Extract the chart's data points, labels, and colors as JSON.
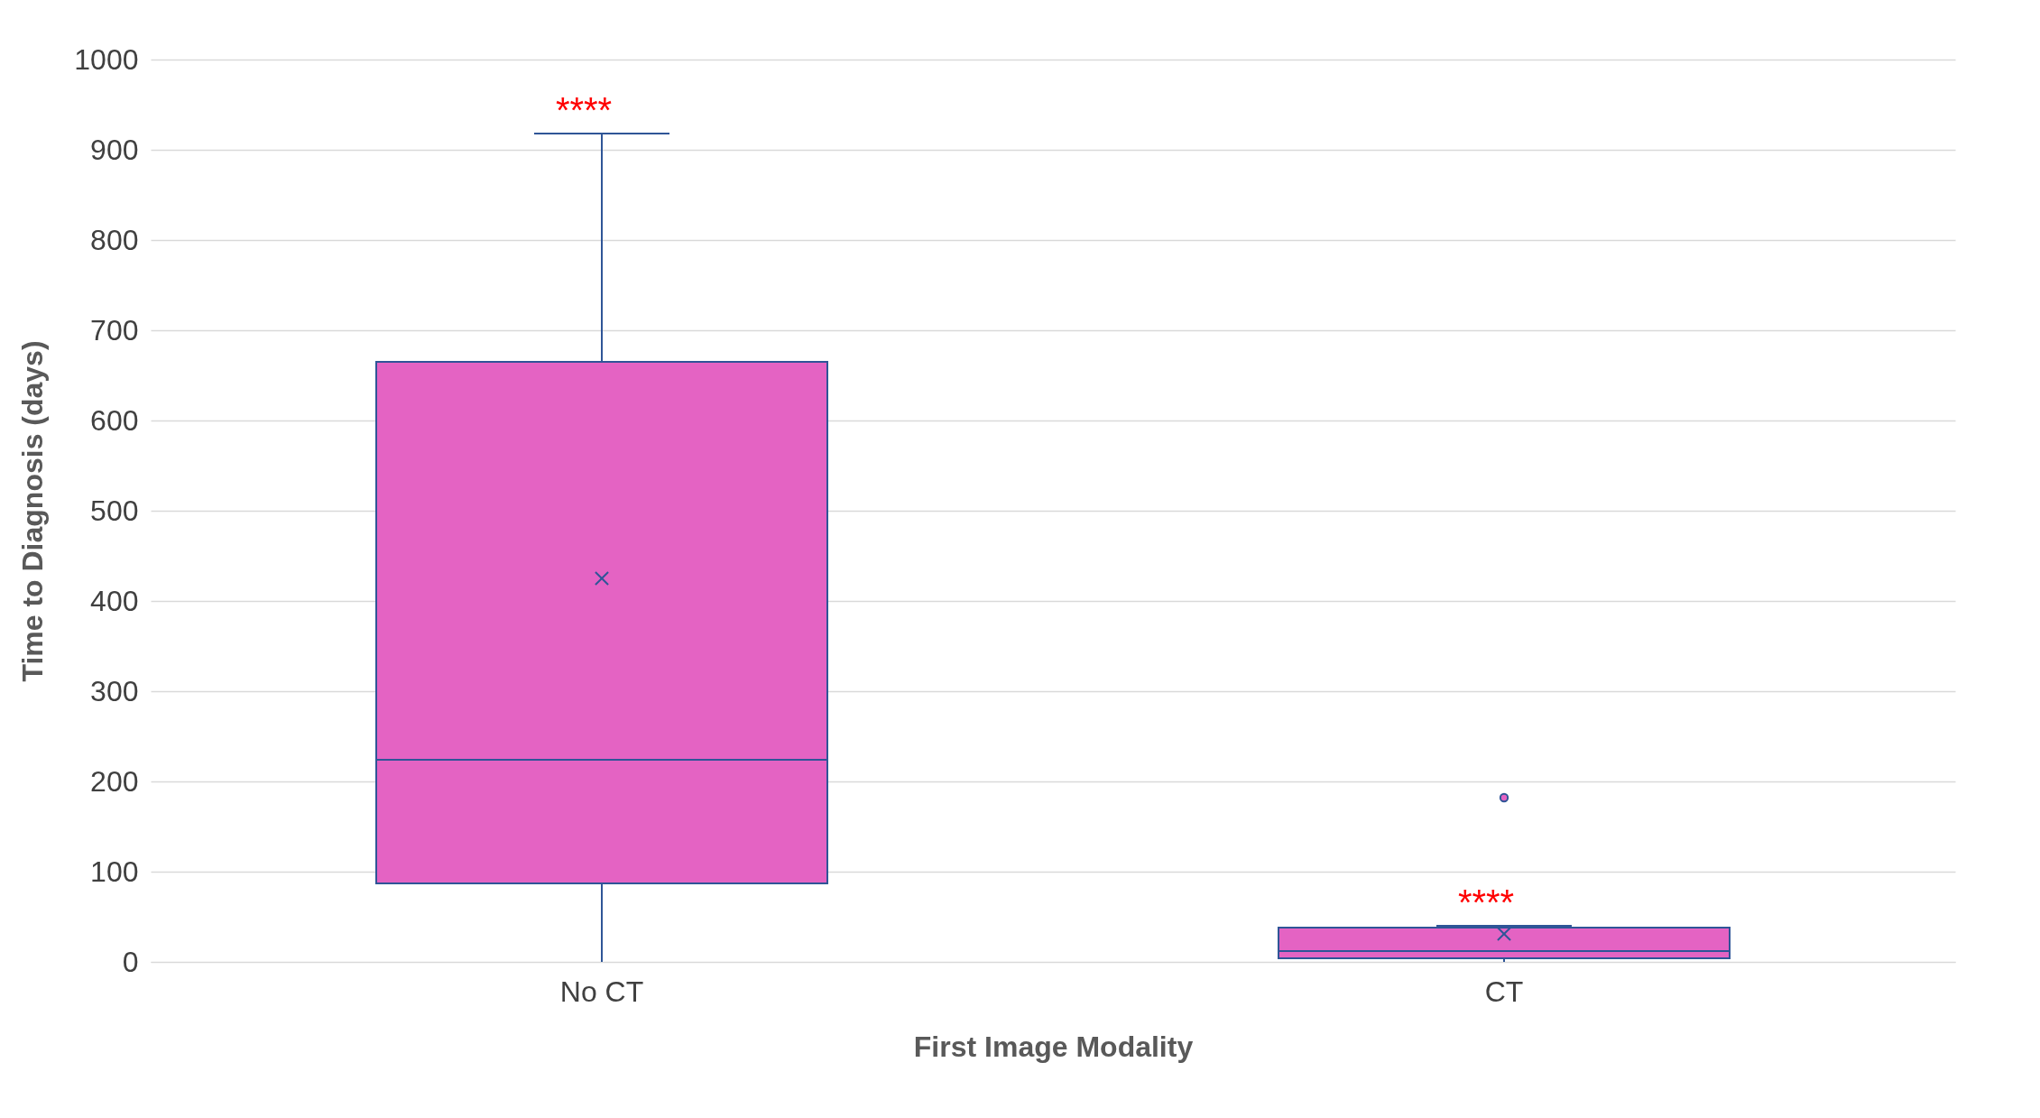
{
  "chart_data": {
    "type": "box",
    "xlabel": "First Image Modality",
    "ylabel": "Time to Diagnosis (days)",
    "categories": [
      "No CT",
      "CT"
    ],
    "boxes": [
      {
        "low": 0,
        "q1": 87,
        "median": 224,
        "q3": 665,
        "high": 918,
        "mean": 425
      },
      {
        "low": 0,
        "q1": 4,
        "median": 12,
        "q3": 38,
        "high": 40,
        "mean": 31,
        "outliers": [
          182
        ]
      }
    ],
    "color": "#e463c3",
    "ylim": [
      0,
      1000
    ],
    "yticks": [
      0,
      100,
      200,
      300,
      400,
      500,
      600,
      700,
      800,
      900,
      1000
    ],
    "grid": "y",
    "annotations": [
      "****",
      "****"
    ]
  }
}
